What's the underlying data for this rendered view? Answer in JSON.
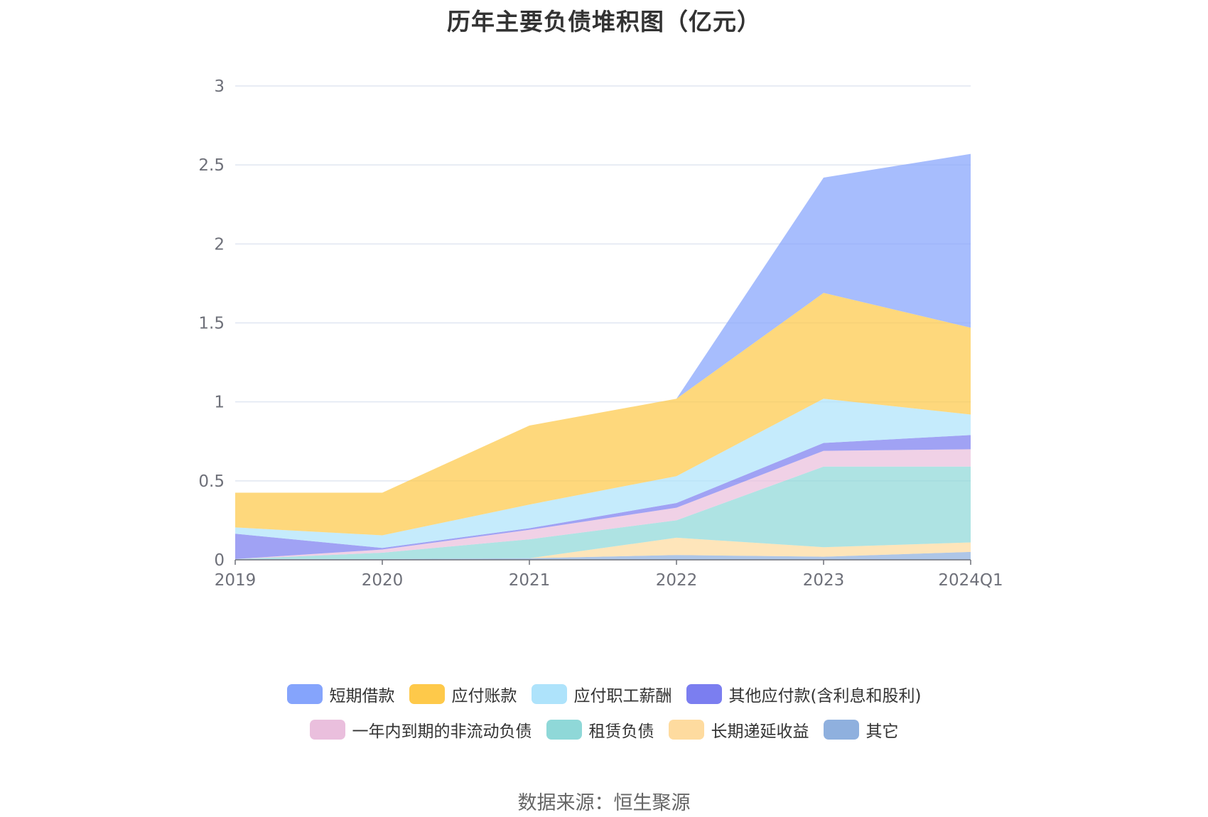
{
  "title": "历年主要负债堆积图（亿元）",
  "source": "数据来源：恒生聚源",
  "chart_data": {
    "type": "area",
    "stacked": true,
    "title": "历年主要负债堆积图（亿元）",
    "categories": [
      "2019",
      "2020",
      "2021",
      "2022",
      "2023",
      "2024Q1"
    ],
    "ylim": [
      0,
      3
    ],
    "yticks": [
      0,
      0.5,
      1,
      1.5,
      2,
      2.5,
      3
    ],
    "ytick_labels": [
      "0",
      "0.5",
      "1",
      "1.5",
      "2",
      "2.5",
      "3"
    ],
    "grid": true,
    "legend_position": "bottom",
    "series": [
      {
        "name": "其它",
        "color": "#8fb0de",
        "values": [
          0.005,
          0.005,
          0.01,
          0.03,
          0.02,
          0.05
        ]
      },
      {
        "name": "长期递延收益",
        "color": "#fedb9f",
        "values": [
          0,
          0,
          0,
          0.11,
          0.06,
          0.06
        ]
      },
      {
        "name": "租赁负债",
        "color": "#8fd8d8",
        "values": [
          0,
          0.04,
          0.12,
          0.11,
          0.51,
          0.48
        ]
      },
      {
        "name": "一年内到期的非流动负债",
        "color": "#eabfdd",
        "values": [
          0,
          0.02,
          0.06,
          0.08,
          0.1,
          0.11
        ]
      },
      {
        "name": "其他应付款(含利息和股利)",
        "color": "#7b7ef0",
        "values": [
          0.16,
          0.01,
          0.01,
          0.03,
          0.05,
          0.09
        ]
      },
      {
        "name": "应付职工薪酬",
        "color": "#aee3fb",
        "values": [
          0.04,
          0.08,
          0.15,
          0.17,
          0.28,
          0.13
        ]
      },
      {
        "name": "应付账款",
        "color": "#fec94a",
        "values": [
          0.22,
          0.27,
          0.5,
          0.49,
          0.67,
          0.55
        ]
      },
      {
        "name": "短期借款",
        "color": "#85a4fc",
        "values": [
          0,
          0,
          0,
          0,
          0.73,
          1.1
        ]
      }
    ],
    "legend_rows": [
      [
        "短期借款",
        "应付账款",
        "应付职工薪酬",
        "其他应付款(含利息和股利)"
      ],
      [
        "一年内到期的非流动负债",
        "租赁负债",
        "长期递延收益",
        "其它"
      ]
    ]
  }
}
